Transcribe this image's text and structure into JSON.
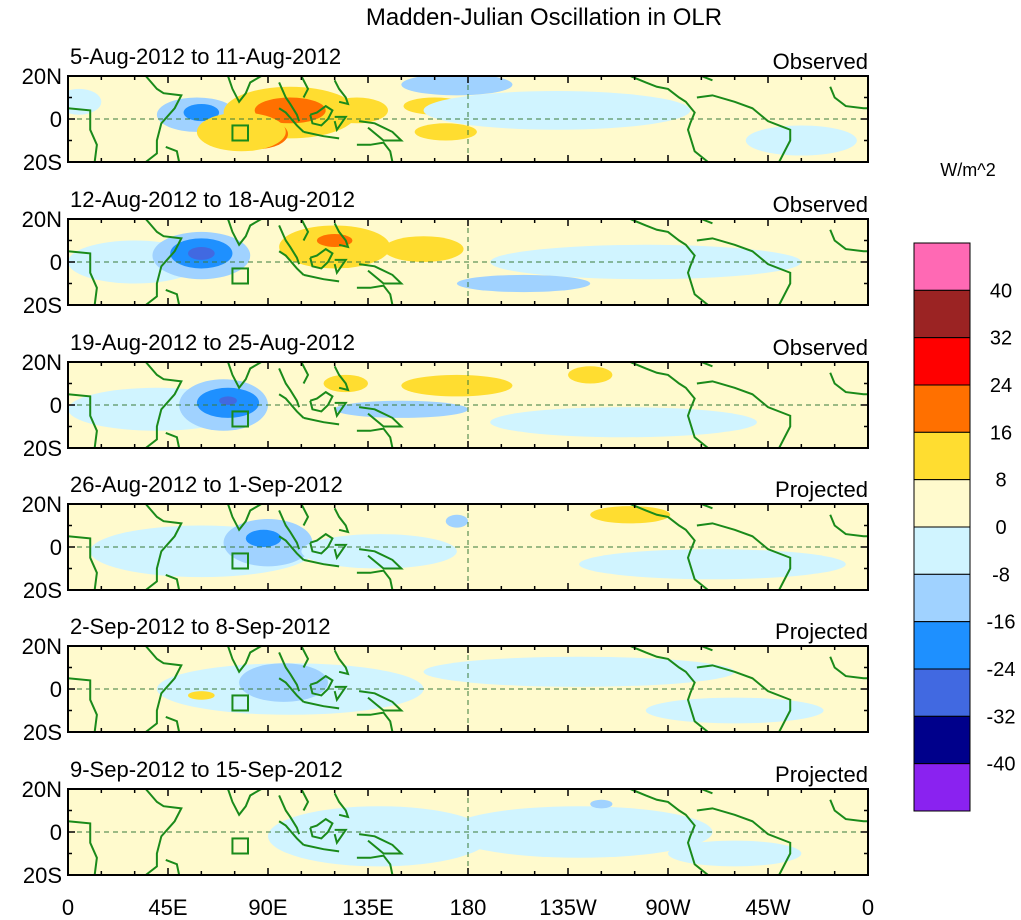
{
  "chart_data": {
    "type": "heatmap",
    "title": "Madden-Julian Oscillation in OLR",
    "units_label": "W/m^2",
    "x_ticks": [
      "0",
      "45E",
      "90E",
      "135E",
      "180",
      "135W",
      "90W",
      "45W",
      "0"
    ],
    "x_tick_lons": [
      0,
      45,
      90,
      135,
      180,
      225,
      270,
      315,
      360
    ],
    "y_ticks": [
      "20N",
      "0",
      "20S"
    ],
    "lat_range": [
      -20,
      20
    ],
    "lon_range": [
      0,
      360
    ],
    "colorbar": {
      "levels": [
        "40",
        "32",
        "24",
        "16",
        "8",
        "0",
        "-8",
        "-16",
        "-24",
        "-32",
        "-40"
      ],
      "colors": [
        "#ff69b4",
        "#9b2323",
        "#ff0000",
        "#ff7000",
        "#ffdd30",
        "#fffacd",
        "#d0f4ff",
        "#a0d2ff",
        "#1e90ff",
        "#4169e1",
        "#00008b",
        "#8a22f0"
      ]
    },
    "panels": [
      {
        "title": "5-Aug-2012 to 11-Aug-2012",
        "status": "Observed",
        "anomalies": [
          {
            "lon": 5,
            "lat": 8,
            "rl": 10,
            "rt": 6,
            "v": -4
          },
          {
            "lon": 58,
            "lat": 2,
            "rl": 18,
            "rt": 8,
            "v": -12
          },
          {
            "lon": 60,
            "lat": 3,
            "rl": 8,
            "rt": 4,
            "v": -20
          },
          {
            "lon": 100,
            "lat": 3,
            "rl": 30,
            "rt": 12,
            "v": 12
          },
          {
            "lon": 100,
            "lat": 4,
            "rl": 16,
            "rt": 6,
            "v": 20
          },
          {
            "lon": 85,
            "lat": -7,
            "rl": 14,
            "rt": 7,
            "v": 20
          },
          {
            "lon": 78,
            "lat": -6,
            "rl": 20,
            "rt": 9,
            "v": 12
          },
          {
            "lon": 130,
            "lat": 4,
            "rl": 14,
            "rt": 6,
            "v": 12
          },
          {
            "lon": 165,
            "lat": 6,
            "rl": 14,
            "rt": 4,
            "v": 12
          },
          {
            "lon": 170,
            "lat": -6,
            "rl": 14,
            "rt": 4,
            "v": 12
          },
          {
            "lon": 220,
            "lat": 4,
            "rl": 60,
            "rt": 9,
            "v": -4
          },
          {
            "lon": 175,
            "lat": 16,
            "rl": 25,
            "rt": 5,
            "v": -12
          },
          {
            "lon": 330,
            "lat": -10,
            "rl": 25,
            "rt": 7,
            "v": -4
          }
        ]
      },
      {
        "title": "12-Aug-2012 to 18-Aug-2012",
        "status": "Observed",
        "anomalies": [
          {
            "lon": 30,
            "lat": 0,
            "rl": 30,
            "rt": 10,
            "v": -4
          },
          {
            "lon": 60,
            "lat": 3,
            "rl": 22,
            "rt": 11,
            "v": -12
          },
          {
            "lon": 60,
            "lat": 4,
            "rl": 14,
            "rt": 7,
            "v": -20
          },
          {
            "lon": 60,
            "lat": 4,
            "rl": 6,
            "rt": 3,
            "v": -28
          },
          {
            "lon": 120,
            "lat": 7,
            "rl": 25,
            "rt": 10,
            "v": 12
          },
          {
            "lon": 120,
            "lat": 10,
            "rl": 8,
            "rt": 3,
            "v": 20
          },
          {
            "lon": 160,
            "lat": 6,
            "rl": 18,
            "rt": 6,
            "v": 12
          },
          {
            "lon": 260,
            "lat": 0,
            "rl": 70,
            "rt": 8,
            "v": -4
          },
          {
            "lon": 205,
            "lat": -10,
            "rl": 30,
            "rt": 4,
            "v": -12
          }
        ]
      },
      {
        "title": "19-Aug-2012 to 25-Aug-2012",
        "status": "Observed",
        "anomalies": [
          {
            "lon": 40,
            "lat": -2,
            "rl": 40,
            "rt": 10,
            "v": -4
          },
          {
            "lon": 70,
            "lat": 0,
            "rl": 20,
            "rt": 12,
            "v": -12
          },
          {
            "lon": 72,
            "lat": 1,
            "rl": 14,
            "rt": 7,
            "v": -20
          },
          {
            "lon": 72,
            "lat": 2,
            "rl": 4,
            "rt": 2,
            "v": -28
          },
          {
            "lon": 125,
            "lat": 10,
            "rl": 10,
            "rt": 4,
            "v": 12
          },
          {
            "lon": 175,
            "lat": 9,
            "rl": 25,
            "rt": 5,
            "v": 12
          },
          {
            "lon": 235,
            "lat": 14,
            "rl": 10,
            "rt": 4,
            "v": 12
          },
          {
            "lon": 250,
            "lat": -8,
            "rl": 60,
            "rt": 7,
            "v": -4
          },
          {
            "lon": 150,
            "lat": -2,
            "rl": 30,
            "rt": 4,
            "v": -12
          }
        ]
      },
      {
        "title": "26-Aug-2012 to 1-Sep-2012",
        "status": "Projected",
        "anomalies": [
          {
            "lon": 60,
            "lat": -2,
            "rl": 50,
            "rt": 12,
            "v": -4
          },
          {
            "lon": 90,
            "lat": 2,
            "rl": 20,
            "rt": 11,
            "v": -12
          },
          {
            "lon": 88,
            "lat": 4,
            "rl": 8,
            "rt": 4,
            "v": -20
          },
          {
            "lon": 140,
            "lat": -2,
            "rl": 35,
            "rt": 8,
            "v": -4
          },
          {
            "lon": 175,
            "lat": 12,
            "rl": 5,
            "rt": 3,
            "v": -12
          },
          {
            "lon": 253,
            "lat": 15,
            "rl": 18,
            "rt": 4,
            "v": 12
          },
          {
            "lon": 290,
            "lat": -8,
            "rl": 60,
            "rt": 7,
            "v": -4
          }
        ]
      },
      {
        "title": "2-Sep-2012 to 8-Sep-2012",
        "status": "Projected",
        "anomalies": [
          {
            "lon": 100,
            "lat": 0,
            "rl": 60,
            "rt": 12,
            "v": -4
          },
          {
            "lon": 97,
            "lat": 3,
            "rl": 20,
            "rt": 9,
            "v": -12
          },
          {
            "lon": 60,
            "lat": -3,
            "rl": 6,
            "rt": 2,
            "v": 12
          },
          {
            "lon": 230,
            "lat": 8,
            "rl": 70,
            "rt": 7,
            "v": -4
          },
          {
            "lon": 300,
            "lat": -10,
            "rl": 40,
            "rt": 6,
            "v": -4
          }
        ]
      },
      {
        "title": "9-Sep-2012 to 15-Sep-2012",
        "status": "Projected",
        "anomalies": [
          {
            "lon": 140,
            "lat": -2,
            "rl": 50,
            "rt": 14,
            "v": -4
          },
          {
            "lon": 230,
            "lat": 0,
            "rl": 60,
            "rt": 12,
            "v": -4
          },
          {
            "lon": 240,
            "lat": 13,
            "rl": 5,
            "rt": 2,
            "v": -12
          },
          {
            "lon": 300,
            "lat": -10,
            "rl": 30,
            "rt": 6,
            "v": -4
          }
        ]
      }
    ]
  }
}
